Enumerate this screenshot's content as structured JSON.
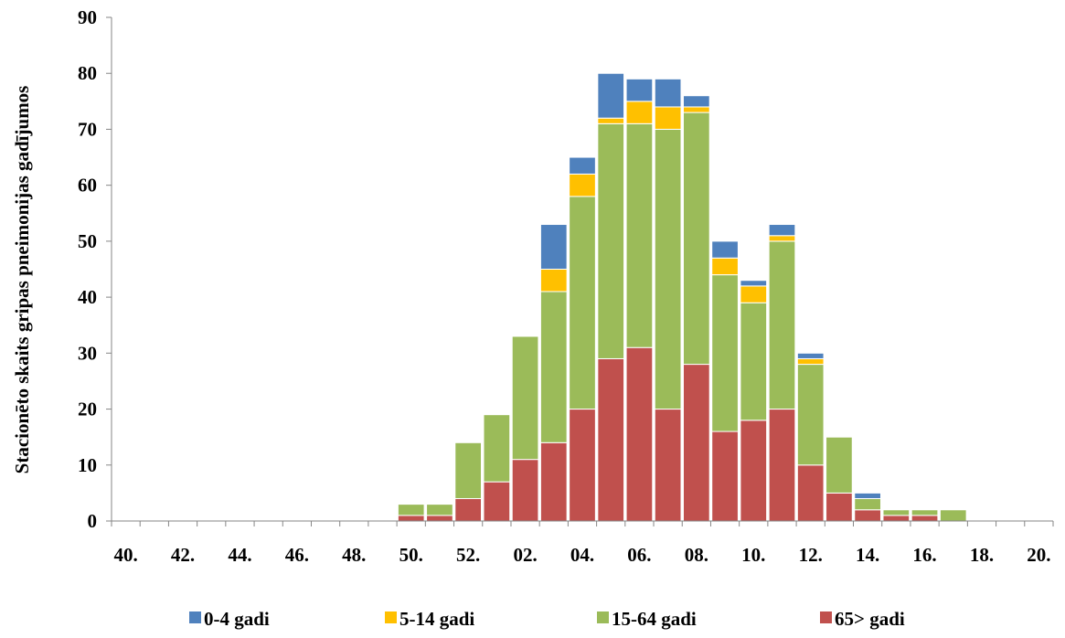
{
  "chart_data": {
    "type": "bar",
    "stacked": true,
    "ylabel": "Stacionēto skaits gripas pneimonijas gadījumos",
    "xlabel": "",
    "ylim": [
      0,
      90
    ],
    "yticks": [
      "0",
      "10",
      "20",
      "30",
      "40",
      "50",
      "60",
      "70",
      "80",
      "90"
    ],
    "grid": false,
    "legend_position": "bottom",
    "categories": [
      "40.",
      "41.",
      "42.",
      "43.",
      "44.",
      "45.",
      "46.",
      "47.",
      "48.",
      "49.",
      "50.",
      "51.",
      "52.",
      "01.",
      "02.",
      "03.",
      "04.",
      "05.",
      "06.",
      "07.",
      "08.",
      "09.",
      "10.",
      "11.",
      "12.",
      "13.",
      "14.",
      "15.",
      "16.",
      "17.",
      "18.",
      "19.",
      "20."
    ],
    "tick_labels": [
      "40.",
      "42.",
      "44.",
      "46.",
      "48.",
      "50.",
      "52.",
      "02.",
      "04.",
      "06.",
      "08.",
      "10.",
      "12.",
      "14.",
      "16.",
      "18.",
      "20."
    ],
    "series": [
      {
        "name": "65> gadi",
        "color": "#C0504D",
        "values": [
          0,
          0,
          0,
          0,
          0,
          0,
          0,
          0,
          0,
          0,
          1,
          1,
          4,
          7,
          11,
          14,
          20,
          29,
          31,
          20,
          28,
          16,
          18,
          20,
          10,
          5,
          2,
          1,
          1,
          0,
          0,
          0,
          0
        ]
      },
      {
        "name": "15-64 gadi",
        "color": "#9BBB59",
        "values": [
          0,
          0,
          0,
          0,
          0,
          0,
          0,
          0,
          0,
          0,
          2,
          2,
          10,
          12,
          22,
          27,
          38,
          42,
          40,
          50,
          45,
          28,
          21,
          30,
          18,
          10,
          2,
          1,
          1,
          2,
          0,
          0,
          0
        ]
      },
      {
        "name": "5-14 gadi",
        "color": "#FFC000",
        "values": [
          0,
          0,
          0,
          0,
          0,
          0,
          0,
          0,
          0,
          0,
          0,
          0,
          0,
          0,
          0,
          4,
          4,
          1,
          4,
          4,
          1,
          3,
          3,
          1,
          1,
          0,
          0,
          0,
          0,
          0,
          0,
          0,
          0
        ]
      },
      {
        "name": "0-4 gadi",
        "color": "#4F81BD",
        "values": [
          0,
          0,
          0,
          0,
          0,
          0,
          0,
          0,
          0,
          0,
          0,
          0,
          0,
          0,
          0,
          8,
          3,
          8,
          4,
          5,
          2,
          3,
          1,
          2,
          1,
          0,
          1,
          0,
          0,
          0,
          0,
          0,
          0
        ]
      }
    ],
    "legend_order": [
      "0-4 gadi",
      "5-14 gadi",
      "15-64 gadi",
      "65> gadi"
    ]
  }
}
